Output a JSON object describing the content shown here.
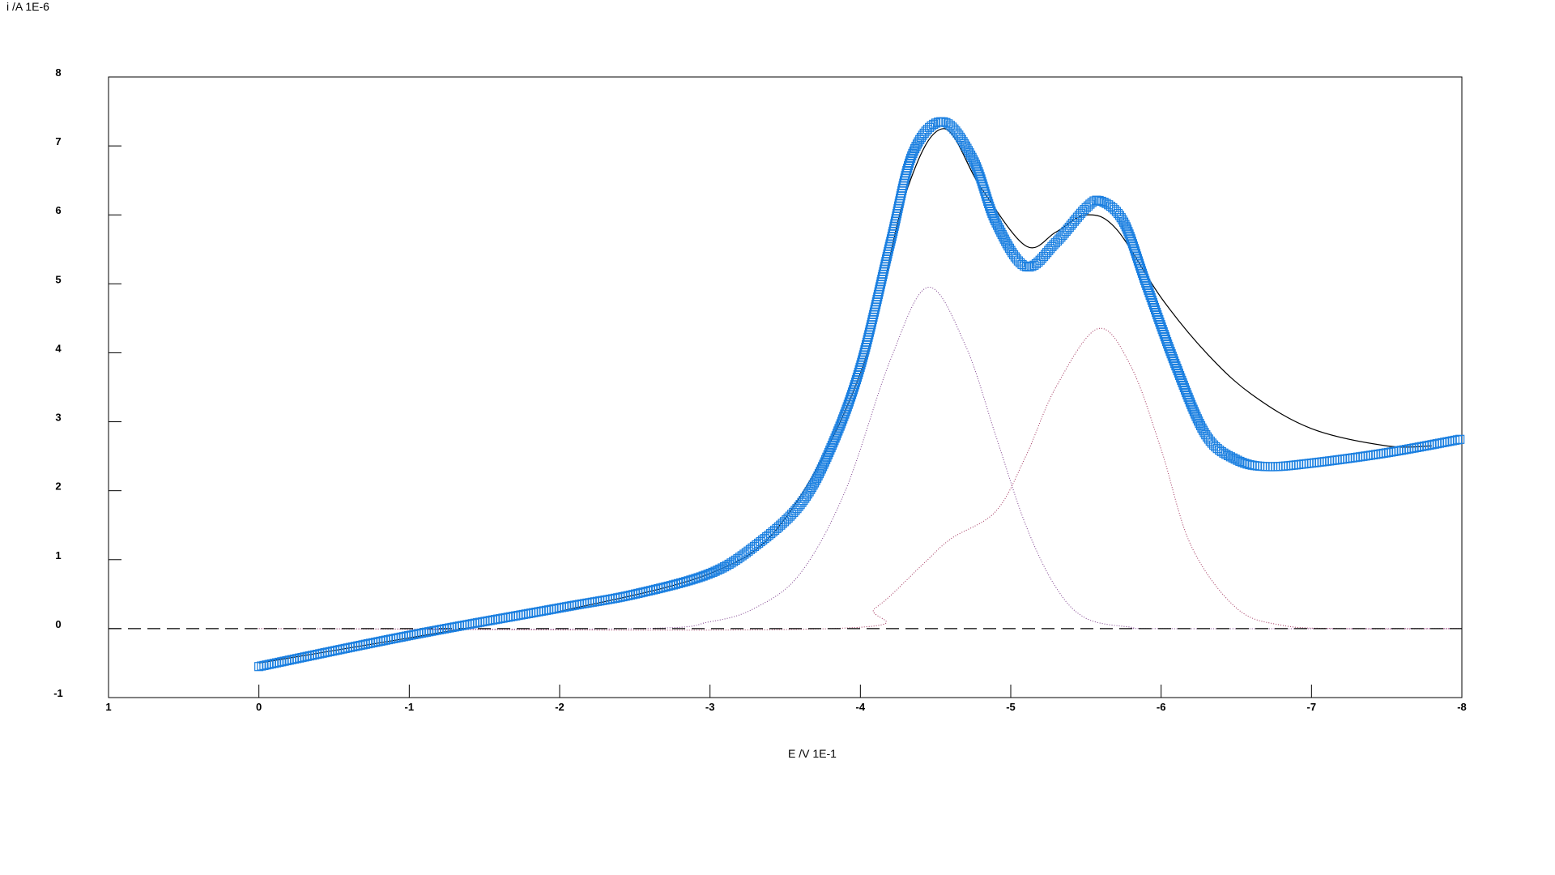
{
  "chart_data": {
    "type": "line",
    "xlabel": "E /V 1E-1",
    "ylabel": "i /A 1E-6",
    "xlim": [
      1,
      -8
    ],
    "ylim": [
      -1,
      8
    ],
    "xticks": [
      "1",
      "0",
      "-1",
      "-2",
      "-3",
      "-4",
      "-5",
      "-6",
      "-7",
      "-8"
    ],
    "yticks": [
      "-1",
      "0",
      "1",
      "2",
      "3",
      "4",
      "5",
      "6",
      "7",
      "8"
    ],
    "grid": false,
    "series": [
      {
        "kind": "measured",
        "style": "square-markers",
        "color": "#1a7fe0",
        "x": [
          0,
          -1,
          -2,
          -2.5,
          -3,
          -3.3,
          -3.6,
          -3.8,
          -4.0,
          -4.2,
          -4.35,
          -4.55,
          -4.75,
          -4.9,
          -5.1,
          -5.3,
          -5.5,
          -5.6,
          -5.75,
          -5.9,
          -6.1,
          -6.3,
          -6.5,
          -6.7,
          -7.0,
          -7.5,
          -8.0
        ],
        "y": [
          -0.55,
          -0.1,
          0.3,
          0.5,
          0.8,
          1.2,
          1.8,
          2.6,
          3.8,
          5.6,
          6.9,
          7.35,
          6.8,
          5.9,
          5.25,
          5.6,
          6.1,
          6.2,
          5.9,
          5.0,
          3.8,
          2.8,
          2.45,
          2.35,
          2.4,
          2.55,
          2.75
        ]
      },
      {
        "kind": "fit",
        "style": "solid",
        "color": "#000000",
        "x": [
          0,
          -1.5,
          -2,
          -3,
          -3.5,
          -4.0,
          -4.3,
          -4.55,
          -4.8,
          -5.1,
          -5.3,
          -5.5,
          -5.7,
          -6.0,
          -6.3,
          -6.6,
          -7.0,
          -7.5,
          -7.8
        ],
        "y": [
          -0.5,
          0.05,
          0.25,
          0.8,
          1.6,
          3.7,
          6.3,
          7.25,
          6.4,
          5.55,
          5.75,
          6.0,
          5.8,
          4.8,
          4.0,
          3.4,
          2.9,
          2.65,
          2.65
        ]
      },
      {
        "kind": "peak-1",
        "style": "dotted",
        "color": "#7a3a8a",
        "x": [
          0,
          -2.5,
          -3.0,
          -3.3,
          -3.6,
          -3.9,
          -4.2,
          -4.45,
          -4.7,
          -4.9,
          -5.1,
          -5.3,
          -5.5,
          -5.8,
          -6.0,
          -8.0
        ],
        "y": [
          0,
          0,
          0.1,
          0.3,
          0.8,
          2.0,
          3.9,
          4.95,
          4.1,
          2.8,
          1.5,
          0.6,
          0.15,
          0.02,
          0,
          0
        ]
      },
      {
        "kind": "peak-2",
        "style": "dotted",
        "color": "#a0305a",
        "x": [
          0,
          -3.8,
          -4.1,
          -4.4,
          -4.6,
          -4.9,
          -5.1,
          -5.3,
          -5.58,
          -5.8,
          -6.0,
          -6.2,
          -6.5,
          -6.8,
          -7.2,
          -8.0
        ],
        "y": [
          0,
          0,
          0.3,
          0.9,
          1.3,
          1.7,
          2.5,
          3.5,
          4.35,
          3.8,
          2.6,
          1.2,
          0.3,
          0.05,
          0,
          0
        ]
      },
      {
        "kind": "baseline",
        "style": "dashed",
        "color": "#000000",
        "x": [
          1,
          -8
        ],
        "y": [
          0,
          0
        ]
      }
    ]
  }
}
